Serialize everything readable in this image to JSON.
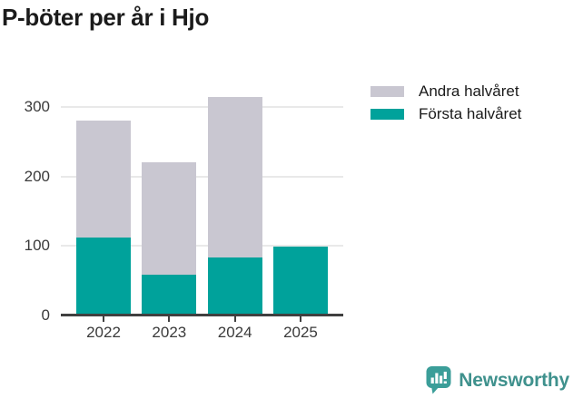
{
  "title": "P-böter per år i Hjo",
  "legend": {
    "items": [
      {
        "label": "Andra halvåret",
        "color": "#c9c7d1"
      },
      {
        "label": "Första halvåret",
        "color": "#00a29b"
      }
    ]
  },
  "chart_data": {
    "type": "bar",
    "stacked": true,
    "title": "P-böter per år i Hjo",
    "categories": [
      "2022",
      "2023",
      "2024",
      "2025"
    ],
    "series": [
      {
        "name": "Första halvåret",
        "color": "#00a29b",
        "values": [
          112,
          59,
          84,
          99
        ]
      },
      {
        "name": "Andra halvåret",
        "color": "#c9c7d1",
        "values": [
          168,
          161,
          230,
          0
        ]
      }
    ],
    "totals": [
      280,
      220,
      314,
      99
    ],
    "xlabel": "",
    "ylabel": "",
    "ylim": [
      0,
      320
    ],
    "yticks": [
      0,
      100,
      200,
      300
    ],
    "grid": true,
    "legend_position": "top-right"
  },
  "colors": {
    "accent_teal": "#00a29b",
    "neutral_gray": "#c9c7d1",
    "axis_line": "#404040",
    "gridline": "#e9e9e9",
    "tick_label": "#3b3b3b",
    "title_text": "#1b1b1b",
    "logo_teal": "#3b9e99",
    "logo_text_teal": "#3f918d"
  },
  "footer": {
    "logo_text": "Newsworthy"
  }
}
